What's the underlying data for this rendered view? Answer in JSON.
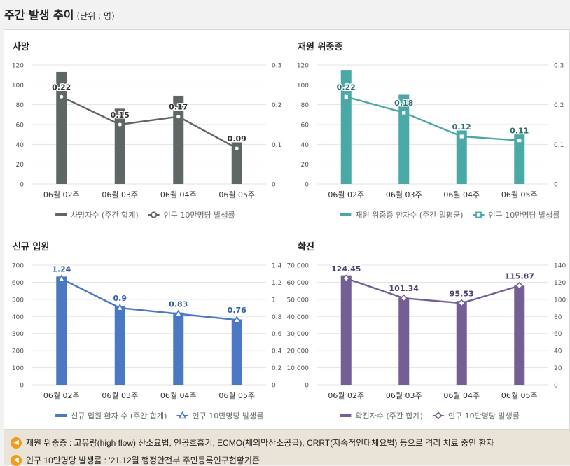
{
  "header": {
    "title": "주간 발생 추이",
    "unit": "(단위 : 명)"
  },
  "chart_data": [
    {
      "type": "bar+line",
      "title": "사망",
      "categories": [
        "06월 02주",
        "06월 03주",
        "06월 04주",
        "06월 05주"
      ],
      "bar_series": {
        "name": "사망자수 (주간 합계)",
        "values": [
          113,
          76,
          89,
          42
        ],
        "color": "#5f6766"
      },
      "line_series": {
        "name": "인구 10만명당 발생률",
        "values": [
          0.22,
          0.15,
          0.17,
          0.09
        ],
        "labels": [
          "0.22",
          "0.15",
          "0.17",
          "0.09"
        ],
        "color": "#5f6766",
        "marker": "circle"
      },
      "left_axis": {
        "min": 0,
        "max": 120,
        "ticks": [
          "0",
          "20",
          "40",
          "60",
          "80",
          "100",
          "120"
        ]
      },
      "right_axis": {
        "min": 0,
        "max": 0.3,
        "ticks": [
          "0",
          "0.1",
          "0.2",
          "0.3"
        ]
      },
      "label_color": "#333333"
    },
    {
      "type": "bar+line",
      "title": "재원 위중증",
      "categories": [
        "06월 02주",
        "06월 03주",
        "06월 04주",
        "06월 05주"
      ],
      "bar_series": {
        "name": "재원 위중증 환자수 (주간 일평균)",
        "values": [
          115,
          90,
          54,
          50
        ],
        "color": "#4aa8a6"
      },
      "line_series": {
        "name": "인구 10만명당 발생률",
        "values": [
          0.22,
          0.18,
          0.12,
          0.11
        ],
        "labels": [
          "0.22",
          "0.18",
          "0.12",
          "0.11"
        ],
        "color": "#4aa8a6",
        "marker": "square"
      },
      "left_axis": {
        "min": 0,
        "max": 120,
        "ticks": [
          "0",
          "20",
          "40",
          "60",
          "80",
          "100",
          "120"
        ]
      },
      "right_axis": {
        "min": 0,
        "max": 0.3,
        "ticks": [
          "0",
          "0.1",
          "0.2",
          "0.3"
        ]
      },
      "label_color": "#2a6e6c"
    },
    {
      "type": "bar+line",
      "title": "신규 입원",
      "categories": [
        "06월 02주",
        "06월 03주",
        "06월 04주",
        "06월 05주"
      ],
      "bar_series": {
        "name": "신규 입원 환자 수 (주간 합계)",
        "values": [
          633,
          459,
          423,
          383
        ],
        "color": "#4a78c2"
      },
      "line_series": {
        "name": "인구 10만명당 발생률",
        "values": [
          1.24,
          0.9,
          0.83,
          0.76
        ],
        "labels": [
          "1.24",
          "0.9",
          "0.83",
          "0.76"
        ],
        "color": "#4a78c2",
        "marker": "triangle"
      },
      "left_axis": {
        "min": 0,
        "max": 700,
        "ticks": [
          "0",
          "100",
          "200",
          "300",
          "400",
          "500",
          "600",
          "700"
        ]
      },
      "right_axis": {
        "min": 0,
        "max": 1.4,
        "ticks": [
          "0",
          "0.2",
          "0.4",
          "0.6",
          "0.8",
          "1",
          "1.2",
          "1.4"
        ]
      },
      "label_color": "#2f5fa8"
    },
    {
      "type": "bar+line",
      "title": "확진",
      "categories": [
        "06월 02주",
        "06월 03주",
        "06월 04주",
        "06월 05주"
      ],
      "bar_series": {
        "name": "확진자수 (주간 합계)",
        "values": [
          64000,
          51000,
          49000,
          58000
        ],
        "color": "#735f94"
      },
      "line_series": {
        "name": "인구 10만명당 발생률",
        "values": [
          124.45,
          101.34,
          95.53,
          115.87
        ],
        "labels": [
          "124.45",
          "101.34",
          "95.53",
          "115.87"
        ],
        "color": "#735f94",
        "marker": "diamond"
      },
      "left_axis": {
        "min": 0,
        "max": 70000,
        "ticks": [
          "0",
          "10,000",
          "20,000",
          "30,000",
          "40,000",
          "50,000",
          "60,000",
          "70,000"
        ]
      },
      "right_axis": {
        "min": 0,
        "max": 140,
        "ticks": [
          "0",
          "20",
          "40",
          "60",
          "80",
          "100",
          "120",
          "140"
        ]
      },
      "label_color": "#4e3f6e"
    }
  ],
  "footer": {
    "note1": "재원 위중증 : 고유량(high flow) 산소요법, 인공호흡기, ECMO(체외막산소공급), CRRT(지속적인대체요법) 등으로 격리 치료 중인 환자",
    "note2": "인구 10만명당 발생률 : '21.12월 행정안전부 주민등록인구현황기준",
    "speaker_glyph": "◀"
  }
}
